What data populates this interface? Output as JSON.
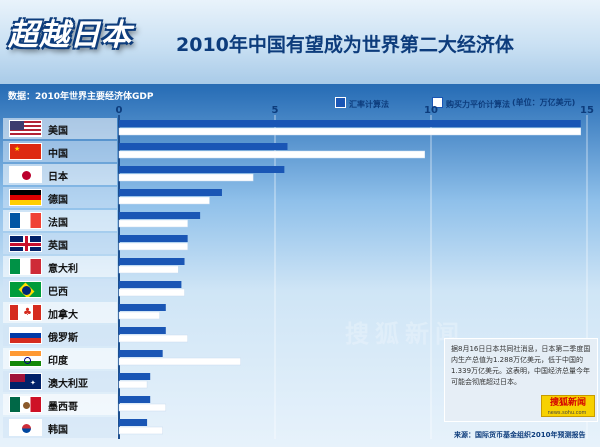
{
  "header": {
    "title_main": "超越日本",
    "title_sub": "2010年中国有望成为世界第二大经济体",
    "subtitle": "数据：2010年世界主要经济体GDP",
    "unit": "(单位：万亿美元)"
  },
  "legend": [
    {
      "label": "汇率计算法",
      "color": "#1a56b5"
    },
    {
      "label": "购买力平价计算法",
      "color": "#ffffff"
    }
  ],
  "news": {
    "text": "据8月16日日本共同社消息，日本第二季度国内生产总值为1.288万亿美元，低于中国的1.339万亿美元。这表明，中国经济总量今年可能会彻底超过日本。",
    "logo": "搜狐新闻",
    "url": "news.sohu.com"
  },
  "watermark": "搜狐新闻",
  "source": "来源：国际货币基金组织2010年预测报告",
  "chart_data": {
    "type": "bar",
    "orientation": "horizontal",
    "title": "2010年中国有望成为世界第二大经济体",
    "subtitle": "数据：2010年世界主要经济体GDP",
    "unit": "(单位：万亿美元)",
    "xlim": [
      0,
      15
    ],
    "ticks": [
      0,
      5,
      10,
      15
    ],
    "categories": [
      "美国",
      "中国",
      "日本",
      "德国",
      "法国",
      "英国",
      "意大利",
      "巴西",
      "加拿大",
      "俄罗斯",
      "印度",
      "澳大利亚",
      "墨西哥",
      "韩国"
    ],
    "series": [
      {
        "name": "汇率计算法",
        "values": [
          14.8,
          5.4,
          5.3,
          3.3,
          2.6,
          2.2,
          2.1,
          2.0,
          1.5,
          1.5,
          1.4,
          1.0,
          1.0,
          0.9
        ]
      },
      {
        "name": "购买力平价计算法",
        "values": [
          14.8,
          9.8,
          4.3,
          2.9,
          2.2,
          2.2,
          1.9,
          2.1,
          1.3,
          2.2,
          3.9,
          0.9,
          1.5,
          1.4
        ]
      }
    ],
    "legend_position": "top-right",
    "grid": true
  }
}
